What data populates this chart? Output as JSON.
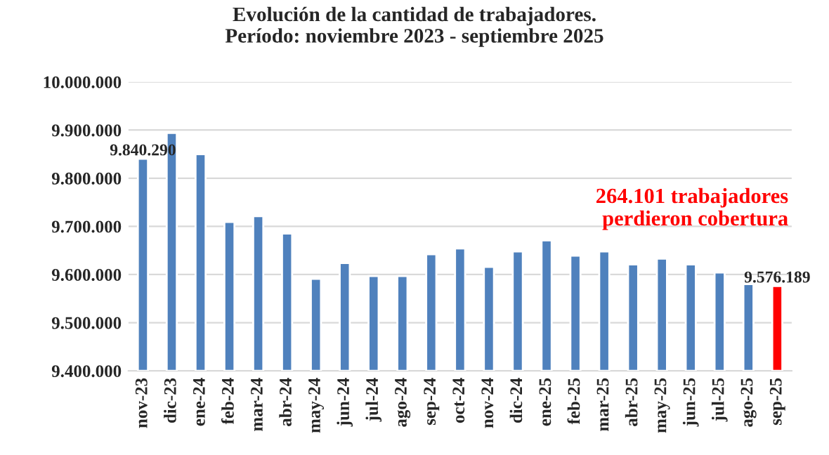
{
  "chart_data": {
    "type": "bar",
    "title": "Evolución de la cantidad de trabajadores.\nPeríodo: noviembre 2023 - septiembre 2025",
    "categories": [
      "nov-23",
      "dic-23",
      "ene-24",
      "feb-24",
      "mar-24",
      "abr-24",
      "may-24",
      "jun-24",
      "jul-24",
      "ago-24",
      "sep-24",
      "oct-24",
      "nov-24",
      "dic-24",
      "ene-25",
      "feb-25",
      "mar-25",
      "abr-25",
      "may-25",
      "jun-25",
      "jul-25",
      "ago-25",
      "sep-25"
    ],
    "values": [
      9840290,
      9894000,
      9850000,
      9709000,
      9721000,
      9685000,
      9591000,
      9624000,
      9597000,
      9597000,
      9642000,
      9654000,
      9616000,
      9648000,
      9671000,
      9639000,
      9648000,
      9621000,
      9633000,
      9621000,
      9604000,
      9580000,
      9576189
    ],
    "colors": [
      "#4f81bd",
      "#4f81bd",
      "#4f81bd",
      "#4f81bd",
      "#4f81bd",
      "#4f81bd",
      "#4f81bd",
      "#4f81bd",
      "#4f81bd",
      "#4f81bd",
      "#4f81bd",
      "#4f81bd",
      "#4f81bd",
      "#4f81bd",
      "#4f81bd",
      "#4f81bd",
      "#4f81bd",
      "#4f81bd",
      "#4f81bd",
      "#4f81bd",
      "#4f81bd",
      "#4f81bd",
      "#ff0000"
    ],
    "value_labels": [
      "9.840.290",
      null,
      null,
      null,
      null,
      null,
      null,
      null,
      null,
      null,
      null,
      null,
      null,
      null,
      null,
      null,
      null,
      null,
      null,
      null,
      null,
      null,
      "9.576.189"
    ],
    "annotations": [
      "264.101 trabajadores\nperdieron cobertura"
    ],
    "ylim": [
      9400000,
      10000000
    ],
    "yticks": [
      {
        "value": 9400000,
        "label": "9.400.000"
      },
      {
        "value": 9500000,
        "label": "9.500.000"
      },
      {
        "value": 9600000,
        "label": "9.600.000"
      },
      {
        "value": 9700000,
        "label": "9.700.000"
      },
      {
        "value": 9800000,
        "label": "9.800.000"
      },
      {
        "value": 9900000,
        "label": "9.900.000"
      },
      {
        "value": 10000000,
        "label": "10.000.000"
      }
    ],
    "grid": "y"
  }
}
